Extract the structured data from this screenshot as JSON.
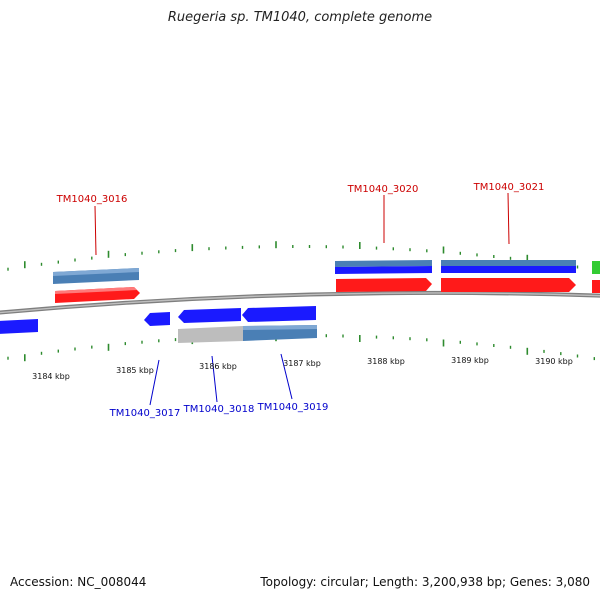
{
  "title": "Ruegeria sp. TM1040, complete genome",
  "footer": {
    "accession": "Accession: NC_008044",
    "topology": "Topology: circular; Length: 3,200,938 bp; Genes: 3,080"
  },
  "colors": {
    "background": "#ffffff",
    "backbone": "#7f7f7f",
    "tick_marks": "#2e8b2e",
    "forward_gene": "#ff1a1a",
    "reverse_gene": "#1a1aff",
    "steelblue_feature": "#4a7fb5",
    "gray_feature": "#bdbdbd",
    "green_feature": "#33cc33",
    "forward_label": "#cc0000",
    "reverse_label": "#0000cc"
  },
  "chart_data": {
    "type": "genome-map",
    "title": "Ruegeria sp. TM1040, complete genome",
    "accession": "NC_008044",
    "topology": "circular",
    "length_bp": 3200938,
    "gene_count": 3080,
    "axis": {
      "unit": "kbp",
      "tick_labels": [
        "3184 kbp",
        "3185 kbp",
        "3186 kbp",
        "3187 kbp",
        "3188 kbp",
        "3189 kbp",
        "3190 kbp"
      ]
    },
    "labeled_genes": [
      {
        "name": "TM1040_3016",
        "strand": "+"
      },
      {
        "name": "TM1040_3017",
        "strand": "-"
      },
      {
        "name": "TM1040_3018",
        "strand": "-"
      },
      {
        "name": "TM1040_3019",
        "strand": "-"
      },
      {
        "name": "TM1040_3020",
        "strand": "+"
      },
      {
        "name": "TM1040_3021",
        "strand": "+"
      }
    ]
  }
}
